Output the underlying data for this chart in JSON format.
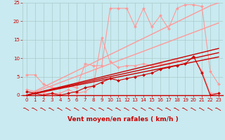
{
  "x": [
    0,
    1,
    2,
    3,
    4,
    5,
    6,
    7,
    8,
    9,
    10,
    11,
    12,
    13,
    14,
    15,
    16,
    17,
    18,
    19,
    20,
    21,
    22,
    23
  ],
  "series": [
    {
      "name": "line1_light_spiky",
      "color": "#ff9999",
      "linewidth": 0.8,
      "marker": "D",
      "markersize": 2.0,
      "y": [
        5.5,
        5.5,
        3.0,
        2.0,
        2.0,
        2.5,
        2.0,
        8.5,
        8.0,
        8.0,
        23.5,
        23.5,
        23.5,
        18.5,
        23.5,
        18.5,
        21.5,
        18.0,
        23.5,
        24.5,
        24.5,
        24.0,
        6.5,
        3.0
      ]
    },
    {
      "name": "line2_light_lower",
      "color": "#ff9999",
      "linewidth": 0.8,
      "marker": "D",
      "markersize": 2.0,
      "y": [
        1.5,
        1.0,
        0.5,
        0.5,
        0.5,
        1.5,
        0.5,
        1.0,
        2.5,
        15.5,
        9.0,
        7.5,
        8.0,
        8.0,
        8.5,
        8.0,
        8.5,
        8.5,
        9.5,
        8.5,
        10.5,
        6.5,
        0.5,
        0.5
      ]
    },
    {
      "name": "line3_diag_light_steep",
      "color": "#ff9999",
      "linewidth": 1.0,
      "marker": null,
      "y": [
        0,
        1.1,
        2.2,
        3.3,
        4.4,
        5.5,
        6.6,
        7.7,
        8.8,
        9.9,
        11.0,
        12.1,
        13.2,
        14.3,
        15.4,
        16.5,
        17.6,
        18.7,
        19.8,
        20.9,
        22.0,
        23.1,
        24.2,
        25.0
      ]
    },
    {
      "name": "line4_diag_light_medium",
      "color": "#ff9999",
      "linewidth": 1.0,
      "marker": null,
      "y": [
        0,
        0.85,
        1.7,
        2.55,
        3.4,
        4.25,
        5.1,
        5.95,
        6.8,
        7.65,
        8.5,
        9.35,
        10.2,
        11.05,
        11.9,
        12.75,
        13.6,
        14.45,
        15.3,
        16.15,
        17.0,
        17.85,
        18.7,
        19.55
      ]
    },
    {
      "name": "line6_red_main_markers",
      "color": "#cc0000",
      "linewidth": 0.8,
      "marker": "D",
      "markersize": 2.0,
      "y": [
        1.0,
        0.5,
        0.0,
        0.5,
        0.0,
        0.5,
        1.0,
        2.0,
        2.5,
        3.5,
        4.5,
        4.0,
        4.5,
        5.0,
        5.5,
        6.0,
        7.0,
        7.5,
        8.0,
        8.5,
        10.5,
        6.0,
        0.0,
        0.5
      ]
    },
    {
      "name": "line7_red_diag1",
      "color": "#cc0000",
      "linewidth": 1.0,
      "marker": null,
      "y": [
        0,
        0.5,
        1.0,
        1.5,
        2.0,
        2.5,
        3.0,
        3.5,
        4.0,
        4.5,
        5.0,
        5.5,
        6.0,
        6.5,
        7.0,
        7.5,
        8.0,
        8.5,
        9.0,
        9.5,
        10.0,
        10.5,
        11.0,
        11.5
      ]
    },
    {
      "name": "line8_red_diag2",
      "color": "#cc0000",
      "linewidth": 1.0,
      "marker": null,
      "y": [
        0,
        0.45,
        0.9,
        1.35,
        1.8,
        2.25,
        2.7,
        3.15,
        3.6,
        4.05,
        4.5,
        4.95,
        5.4,
        5.85,
        6.3,
        6.75,
        7.2,
        7.65,
        8.1,
        8.55,
        9.0,
        9.45,
        9.9,
        10.35
      ]
    },
    {
      "name": "line9_red_diag3",
      "color": "#cc0000",
      "linewidth": 1.0,
      "marker": null,
      "y": [
        0,
        0.55,
        1.1,
        1.65,
        2.2,
        2.75,
        3.3,
        3.85,
        4.4,
        4.95,
        5.5,
        6.05,
        6.6,
        7.15,
        7.7,
        8.25,
        8.8,
        9.35,
        9.9,
        10.45,
        11.0,
        11.55,
        12.1,
        12.65
      ]
    }
  ],
  "xlim": [
    -0.5,
    23.5
  ],
  "ylim": [
    0,
    25
  ],
  "xticks": [
    0,
    1,
    2,
    3,
    4,
    5,
    6,
    7,
    8,
    9,
    10,
    11,
    12,
    13,
    14,
    15,
    16,
    17,
    18,
    19,
    20,
    21,
    22,
    23
  ],
  "yticks": [
    0,
    5,
    10,
    15,
    20,
    25
  ],
  "xlabel": "Vent moyen/en rafales ( km/h )",
  "background_color": "#c8eaf0",
  "grid_color": "#aacccc",
  "tick_color": "#cc0000",
  "label_color": "#cc0000",
  "xlabel_fontsize": 6.5,
  "tick_fontsize": 5.0,
  "arrow_color": "#cc0000"
}
